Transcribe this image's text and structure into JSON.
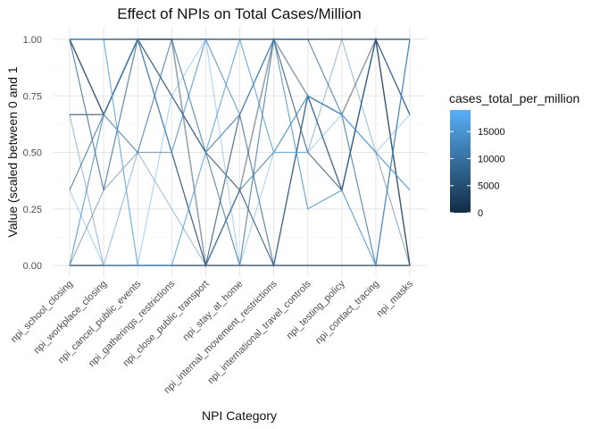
{
  "chart_data": {
    "type": "parallel_coordinates",
    "title": "Effect of NPIs on Total Cases/Million",
    "xlabel": "NPI Category",
    "ylabel": "Value (scaled between 0 and 1",
    "categories": [
      "npi_school_closing",
      "npi_workplace_closing",
      "npi_cancel_public_events",
      "npi_gatherings_restrictions",
      "npi_close_public_transport",
      "npi_stay_at_home",
      "npi_internal_movement_restrictions",
      "npi_international_travel_controls",
      "npi_testing_policy",
      "npi_contact_tracing",
      "npi_masks"
    ],
    "y_ticks": [
      "0.00",
      "0.25",
      "0.50",
      "0.75",
      "1.00"
    ],
    "ylim": [
      0,
      1
    ],
    "grid": true,
    "legend": {
      "title": "cases_total_per_million",
      "position": "right",
      "ticks": [
        0,
        5000,
        10000,
        15000
      ],
      "range": [
        0,
        19000
      ],
      "color_low": "#132B43",
      "color_high": "#56B1F7"
    },
    "series": [
      {
        "values": [
          1,
          1,
          1,
          1,
          1,
          1,
          1,
          1,
          1,
          1,
          1
        ],
        "color_value": 600
      },
      {
        "values": [
          0,
          0,
          0,
          0,
          0,
          0,
          0,
          0,
          0,
          0,
          0
        ],
        "color_value": 900
      },
      {
        "values": [
          1,
          0.667,
          1,
          1,
          0,
          0.333,
          1,
          0.75,
          0.667,
          1,
          0
        ],
        "color_value": 1200
      },
      {
        "values": [
          0.667,
          0.667,
          1,
          0.75,
          0.5,
          0.333,
          0,
          0.75,
          0.333,
          1,
          0
        ],
        "color_value": 2500
      },
      {
        "values": [
          1,
          0.667,
          1,
          0.5,
          0,
          0.667,
          1,
          0.5,
          0.333,
          1,
          0.667
        ],
        "color_value": 4000
      },
      {
        "values": [
          0,
          0.333,
          0.5,
          0.5,
          0,
          0.333,
          0.5,
          0.75,
          0.667,
          0.5,
          0
        ],
        "color_value": 6000
      },
      {
        "values": [
          1,
          0.333,
          1,
          0.75,
          0.5,
          0.667,
          0,
          0.75,
          0.333,
          1,
          0.667
        ],
        "color_value": 8000
      },
      {
        "values": [
          0.333,
          0.667,
          0.5,
          1,
          0.5,
          0,
          1,
          1,
          0.667,
          0,
          1
        ],
        "color_value": 9500
      },
      {
        "values": [
          0.667,
          0,
          0.5,
          0.25,
          0,
          0.333,
          0.5,
          0.5,
          1,
          0.5,
          0.333
        ],
        "color_value": 11500
      },
      {
        "values": [
          0,
          0.667,
          1,
          0.5,
          1,
          0.667,
          1,
          0.25,
          0.333,
          0,
          1
        ],
        "color_value": 13500
      },
      {
        "values": [
          1,
          1,
          0,
          0,
          0.5,
          1,
          0.5,
          0.75,
          0.667,
          0.5,
          0.333
        ],
        "color_value": 15500
      },
      {
        "values": [
          0.333,
          0,
          0,
          0.75,
          1,
          0,
          0.5,
          0.5,
          0.667,
          0.5,
          0.667
        ],
        "color_value": 17500
      }
    ]
  }
}
